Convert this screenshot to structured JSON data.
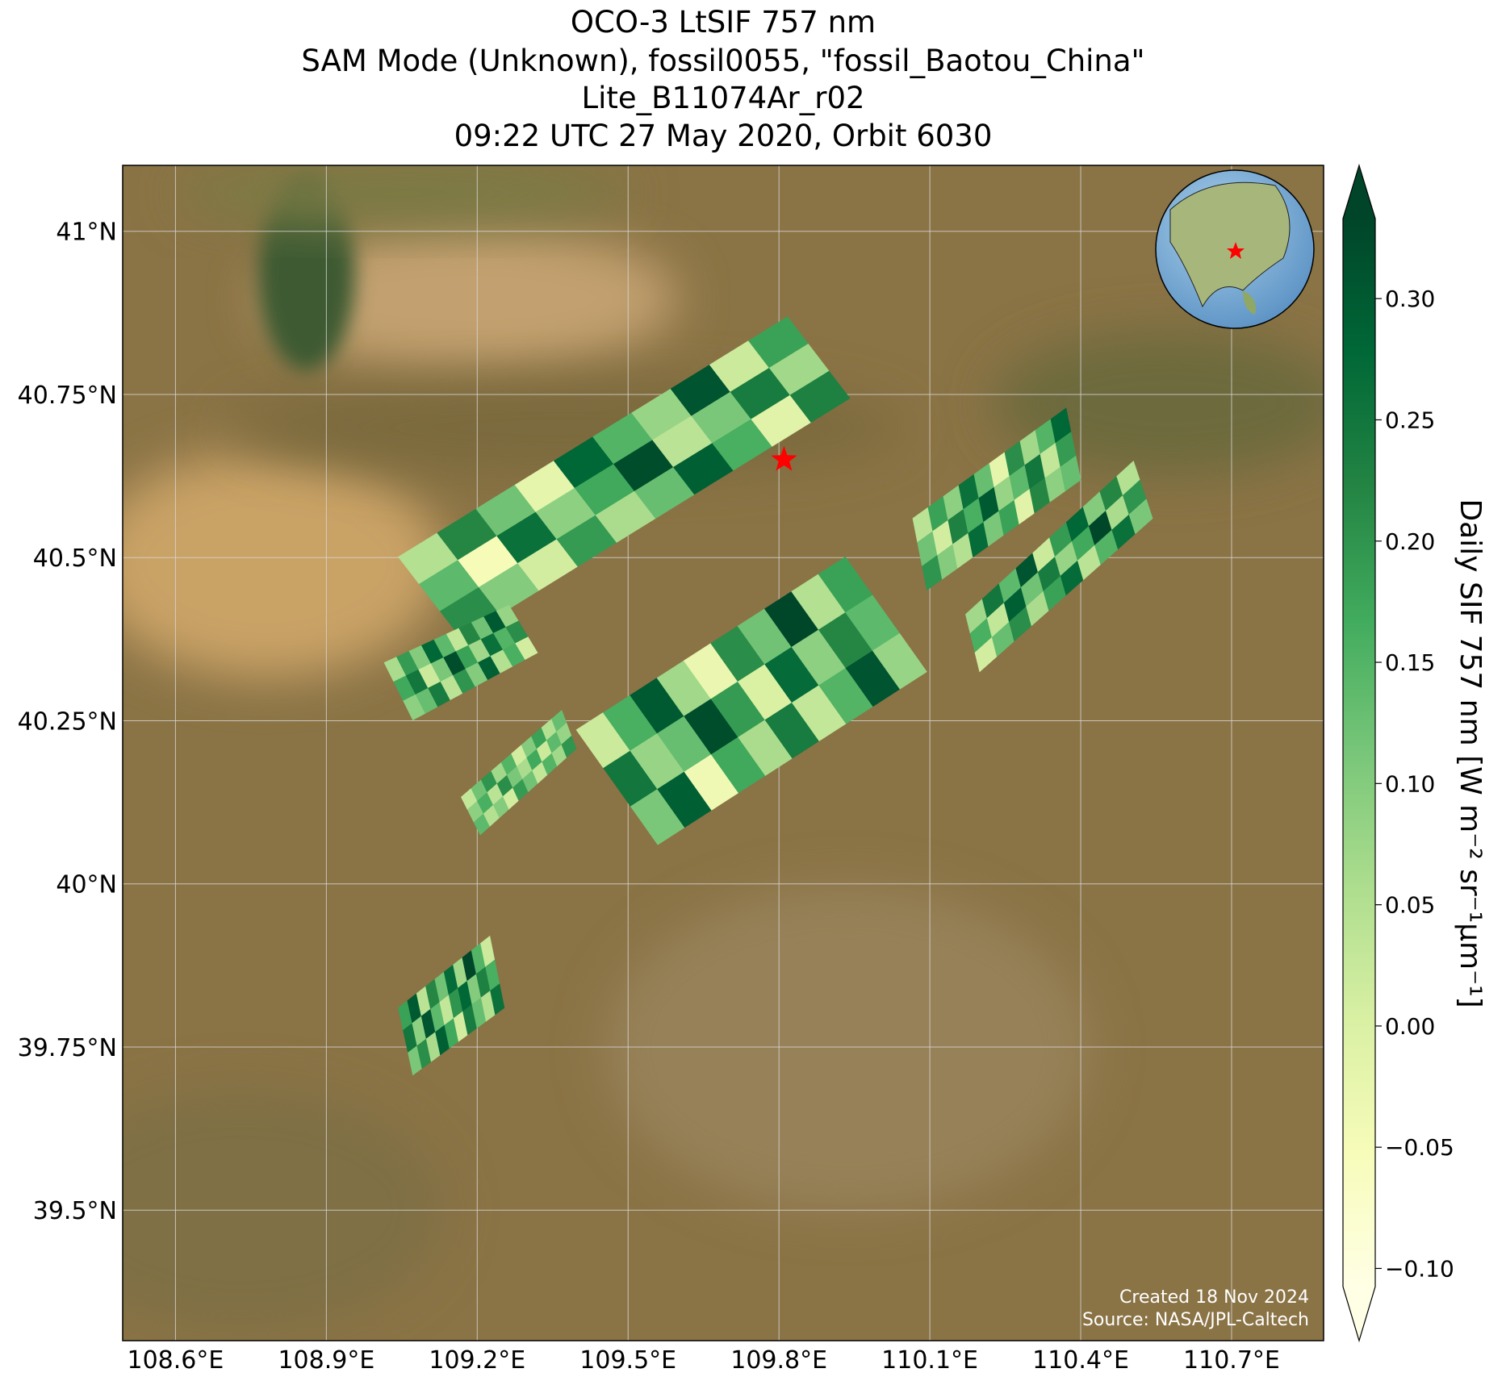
{
  "map": {
    "title": [
      "OCO-3 LtSIF 757 nm",
      "SAM Mode (Unknown), fossil0055, \"fossil_Baotou_China\"",
      "Lite_B11074Ar_r02",
      "09:22 UTC 27 May 2020, Orbit 6030"
    ],
    "xlim": [
      108.495,
      110.883
    ],
    "ylim": [
      39.3,
      41.101
    ],
    "xticks": [
      {
        "value": 108.6,
        "label": "108.6°E"
      },
      {
        "value": 108.9,
        "label": "108.9°E"
      },
      {
        "value": 109.2,
        "label": "109.2°E"
      },
      {
        "value": 109.5,
        "label": "109.5°E"
      },
      {
        "value": 109.8,
        "label": "109.8°E"
      },
      {
        "value": 110.1,
        "label": "110.1°E"
      },
      {
        "value": 110.4,
        "label": "110.4°E"
      },
      {
        "value": 110.7,
        "label": "110.7°E"
      }
    ],
    "yticks": [
      {
        "value": 39.5,
        "label": "39.5°N"
      },
      {
        "value": 39.75,
        "label": "39.75°N"
      },
      {
        "value": 40,
        "label": "40°N"
      },
      {
        "value": 40.25,
        "label": "40.25°N"
      },
      {
        "value": 40.5,
        "label": "40.5°N"
      },
      {
        "value": 40.75,
        "label": "40.75°N"
      },
      {
        "value": 41,
        "label": "41°N"
      }
    ],
    "grid": true,
    "site": {
      "lon": 109.81,
      "lat": 40.65,
      "color": "#ff0000"
    },
    "colorbar": {
      "label": "Daily SIF 757 nm [W m⁻² sr⁻¹μm⁻¹]",
      "clim": [
        -0.1075,
        0.333
      ],
      "ticks": [
        {
          "value": -0.1,
          "label": "−0.10"
        },
        {
          "value": -0.05,
          "label": "−0.05"
        },
        {
          "value": 0,
          "label": "0.00"
        },
        {
          "value": 0.05,
          "label": "0.05"
        },
        {
          "value": 0.1,
          "label": "0.10"
        },
        {
          "value": 0.15,
          "label": "0.15"
        },
        {
          "value": 0.2,
          "label": "0.20"
        },
        {
          "value": 0.25,
          "label": "0.25"
        },
        {
          "value": 0.3,
          "label": "0.30"
        }
      ],
      "colormap": [
        "#ffffe5",
        "#f7fcb9",
        "#d9f0a3",
        "#addd8e",
        "#78c679",
        "#41ab5d",
        "#238443",
        "#006837",
        "#004529"
      ]
    },
    "swaths": [
      {
        "corners": [
          [
            109.043,
            40.501
          ],
          [
            109.817,
            40.869
          ],
          [
            109.941,
            40.744
          ],
          [
            109.168,
            40.376
          ]
        ],
        "values": [
          [
            0.05,
            0.22,
            0.12,
            -0.02,
            0.28,
            0.15,
            0.08,
            0.31,
            0.02,
            0.18
          ],
          [
            0.14,
            -0.05,
            0.26,
            0.09,
            0.17,
            0.32,
            0.04,
            0.11,
            0.24,
            0.07
          ],
          [
            0.21,
            0.1,
            0.01,
            0.19,
            0.06,
            0.13,
            0.29,
            0.16,
            -0.01,
            0.23
          ]
        ]
      },
      {
        "corners": [
          [
            109.397,
            40.236
          ],
          [
            109.932,
            40.501
          ],
          [
            110.094,
            40.325
          ],
          [
            109.559,
            40.06
          ]
        ],
        "values": [
          [
            0.02,
            0.16,
            0.3,
            0.07,
            -0.03,
            0.21,
            0.12,
            0.33,
            0.05,
            0.18
          ],
          [
            0.25,
            0.08,
            0.13,
            0.32,
            0.19,
            0.0,
            0.27,
            0.09,
            0.22,
            0.14
          ],
          [
            0.11,
            0.29,
            -0.04,
            0.17,
            0.06,
            0.24,
            0.03,
            0.15,
            0.31,
            0.08
          ]
        ]
      },
      {
        "corners": [
          [
            110.066,
            40.56
          ],
          [
            110.371,
            40.729
          ],
          [
            110.4,
            40.619
          ],
          [
            110.094,
            40.45
          ]
        ],
        "values": [
          [
            0.04,
            0.18,
            0.09,
            0.26,
            0.13,
            -0.02,
            0.21,
            0.07,
            0.15,
            0.28
          ],
          [
            0.12,
            0.01,
            0.23,
            0.16,
            0.3,
            0.08,
            0.14,
            0.25,
            0.03,
            0.19
          ],
          [
            0.2,
            0.1,
            0.05,
            0.27,
            0.11,
            0.18,
            -0.01,
            0.22,
            0.09,
            0.13
          ]
        ]
      },
      {
        "corners": [
          [
            110.171,
            40.413
          ],
          [
            110.505,
            40.648
          ],
          [
            110.543,
            40.56
          ],
          [
            110.199,
            40.325
          ]
        ],
        "values": [
          [
            0.07,
            0.25,
            0.14,
            0.31,
            0.02,
            0.19,
            0.28,
            0.1,
            0.22,
            0.05
          ],
          [
            0.16,
            0.03,
            0.29,
            0.12,
            0.24,
            0.08,
            0.17,
            0.33,
            0.06,
            0.2
          ],
          [
            0.01,
            0.13,
            0.21,
            0.06,
            0.18,
            0.27,
            0.04,
            0.15,
            0.26,
            0.11
          ]
        ]
      },
      {
        "corners": [
          [
            109.015,
            40.339
          ],
          [
            109.263,
            40.427
          ],
          [
            109.32,
            40.354
          ],
          [
            109.072,
            40.251
          ]
        ],
        "values": [
          [
            0.06,
            0.19,
            0.1,
            0.28,
            0.14,
            0.03,
            0.22,
            0.12,
            0.3,
            0.08
          ],
          [
            0.17,
            0.25,
            0.02,
            0.11,
            0.32,
            0.18,
            0.07,
            0.26,
            0.15,
            0.21
          ],
          [
            0.09,
            0.13,
            0.24,
            0.04,
            0.2,
            0.1,
            0.29,
            0.05,
            0.16,
            0.01
          ]
        ]
      },
      {
        "corners": [
          [
            109.043,
            39.81
          ],
          [
            109.225,
            39.92
          ],
          [
            109.254,
            39.81
          ],
          [
            109.072,
            39.707
          ]
        ],
        "values": [
          [
            0.18,
            0.3,
            0.04,
            0.22,
            0.12,
            0.27,
            0.07,
            0.33,
            0.15,
            0.02
          ],
          [
            0.25,
            0.09,
            0.31,
            0.14,
            0.03,
            0.2,
            0.28,
            0.1,
            0.23,
            0.16
          ],
          [
            0.11,
            0.21,
            0.06,
            0.29,
            0.17,
            0.01,
            0.24,
            0.13,
            0.05,
            0.26
          ]
        ]
      },
      {
        "corners": [
          [
            109.168,
            40.133
          ],
          [
            109.368,
            40.266
          ],
          [
            109.397,
            40.207
          ],
          [
            109.206,
            40.075
          ]
        ],
        "values": [
          [
            0.03,
            0.12,
            0.2,
            0.07,
            0.15,
            0.01,
            0.1,
            0.18,
            0.05,
            0.13
          ],
          [
            0.09,
            0.16,
            0.04,
            0.21,
            0.11,
            0.06,
            0.17,
            0.02,
            0.14,
            0.08
          ],
          [
            0.14,
            0.05,
            0.1,
            0.01,
            0.19,
            0.12,
            0.03,
            0.15,
            0.07,
            0.2
          ]
        ]
      }
    ],
    "credits": [
      "Created 18 Nov 2024",
      "Source: NASA/JPL-Caltech"
    ]
  }
}
